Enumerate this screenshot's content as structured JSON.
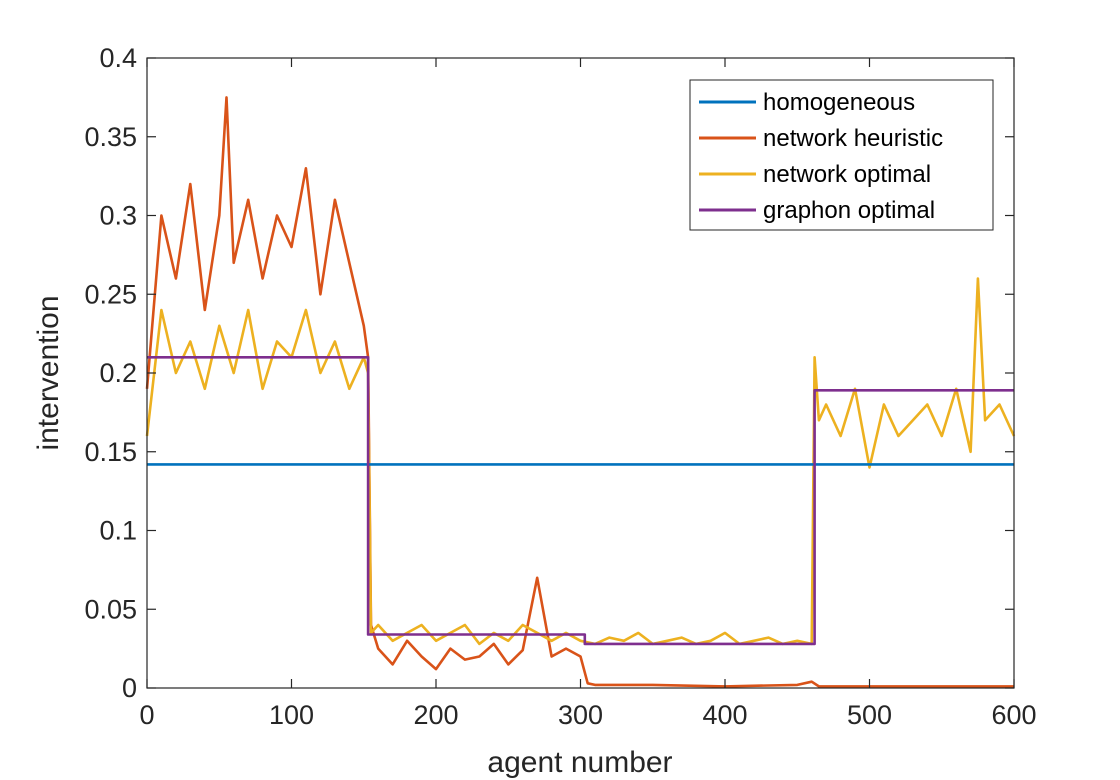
{
  "chart_data": {
    "type": "line",
    "xlabel": "agent number",
    "ylabel": "intervention",
    "xlim": [
      0,
      600
    ],
    "ylim": [
      0,
      0.4
    ],
    "xticks": [
      0,
      100,
      200,
      300,
      400,
      500,
      600
    ],
    "xtick_labels": [
      "0",
      "100",
      "200",
      "300",
      "400",
      "500",
      "600"
    ],
    "yticks": [
      0,
      0.05,
      0.1,
      0.15,
      0.2,
      0.25,
      0.3,
      0.35,
      0.4
    ],
    "ytick_labels": [
      "0",
      "0.05",
      "0.1",
      "0.15",
      "0.2",
      "0.25",
      "0.3",
      "0.35",
      "0.4"
    ],
    "grid": false,
    "legend_position": "top-right",
    "series": [
      {
        "name": "homogeneous",
        "color": "#0072BD",
        "x": [
          0,
          600
        ],
        "y": [
          0.142,
          0.142
        ]
      },
      {
        "name": "network heuristic",
        "color": "#D95319",
        "x": [
          0,
          10,
          20,
          30,
          40,
          50,
          55,
          60,
          70,
          80,
          90,
          100,
          110,
          120,
          130,
          140,
          150,
          153,
          155,
          160,
          170,
          180,
          190,
          200,
          210,
          220,
          230,
          240,
          250,
          260,
          270,
          280,
          290,
          300,
          305,
          310,
          320,
          350,
          400,
          450,
          460,
          465,
          470,
          500,
          550,
          600
        ],
        "y": [
          0.19,
          0.3,
          0.26,
          0.32,
          0.24,
          0.3,
          0.375,
          0.27,
          0.31,
          0.26,
          0.3,
          0.28,
          0.33,
          0.25,
          0.31,
          0.27,
          0.23,
          0.21,
          0.04,
          0.025,
          0.015,
          0.03,
          0.02,
          0.012,
          0.025,
          0.018,
          0.02,
          0.028,
          0.015,
          0.024,
          0.07,
          0.02,
          0.025,
          0.02,
          0.003,
          0.002,
          0.002,
          0.002,
          0.001,
          0.002,
          0.004,
          0.001,
          0.001,
          0.001,
          0.001,
          0.001
        ]
      },
      {
        "name": "network optimal",
        "color": "#EDB120",
        "x": [
          0,
          10,
          20,
          30,
          40,
          50,
          60,
          70,
          80,
          90,
          100,
          110,
          120,
          130,
          140,
          150,
          153,
          155,
          160,
          170,
          180,
          190,
          200,
          210,
          220,
          230,
          240,
          250,
          260,
          270,
          280,
          290,
          300,
          310,
          320,
          330,
          340,
          350,
          360,
          370,
          380,
          390,
          400,
          410,
          420,
          430,
          440,
          450,
          460,
          462,
          465,
          470,
          480,
          490,
          500,
          510,
          520,
          530,
          540,
          550,
          560,
          570,
          575,
          580,
          590,
          600
        ],
        "y": [
          0.16,
          0.24,
          0.2,
          0.22,
          0.19,
          0.23,
          0.2,
          0.24,
          0.19,
          0.22,
          0.21,
          0.24,
          0.2,
          0.22,
          0.19,
          0.21,
          0.2,
          0.035,
          0.04,
          0.03,
          0.035,
          0.04,
          0.03,
          0.035,
          0.04,
          0.028,
          0.035,
          0.03,
          0.04,
          0.035,
          0.03,
          0.035,
          0.03,
          0.028,
          0.032,
          0.03,
          0.035,
          0.028,
          0.03,
          0.032,
          0.028,
          0.03,
          0.035,
          0.028,
          0.03,
          0.032,
          0.028,
          0.03,
          0.028,
          0.21,
          0.17,
          0.18,
          0.16,
          0.19,
          0.14,
          0.18,
          0.16,
          0.17,
          0.18,
          0.16,
          0.19,
          0.15,
          0.26,
          0.17,
          0.18,
          0.16
        ]
      },
      {
        "name": "graphon optimal",
        "color": "#7E2F8E",
        "x": [
          0,
          153,
          153,
          303,
          303,
          462,
          462,
          600
        ],
        "y": [
          0.21,
          0.21,
          0.034,
          0.034,
          0.028,
          0.028,
          0.189,
          0.189
        ]
      }
    ]
  }
}
